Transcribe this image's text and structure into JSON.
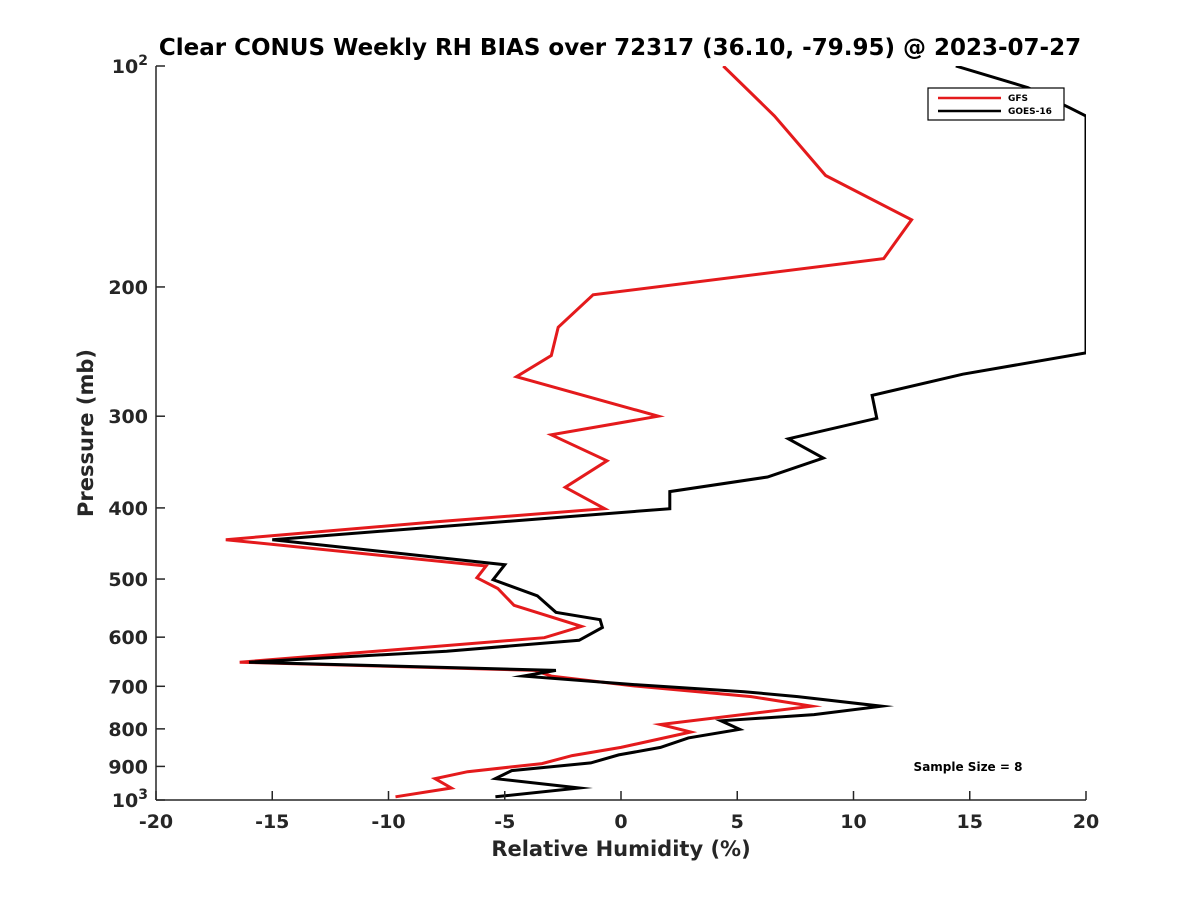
{
  "chart_data": {
    "type": "line",
    "title": "Clear CONUS Weekly RH BIAS over 72317 (36.10, -79.95) @ 2023-07-27",
    "xlabel": "Relative Humidity (%)",
    "ylabel": "Pressure (mb)",
    "xlim": [
      -20,
      20
    ],
    "ylim": [
      100,
      1000
    ],
    "yscale": "log",
    "y_reversed": true,
    "grid": false,
    "legend_position": "top-right",
    "xticks": [
      "-20",
      "-15",
      "-10",
      "-5",
      "0",
      "5",
      "10",
      "15",
      "20"
    ],
    "xtick_values": [
      -20,
      -15,
      -10,
      -5,
      0,
      5,
      10,
      15,
      20
    ],
    "yticks": [
      {
        "value": 100,
        "base": "10",
        "exp": "2",
        "label": ""
      },
      {
        "value": 200,
        "label": "200"
      },
      {
        "value": 300,
        "label": "300"
      },
      {
        "value": 400,
        "label": "400"
      },
      {
        "value": 500,
        "label": "500"
      },
      {
        "value": 600,
        "label": "600"
      },
      {
        "value": 700,
        "label": "700"
      },
      {
        "value": 800,
        "label": "800"
      },
      {
        "value": 900,
        "label": "900"
      },
      {
        "value": 1000,
        "base": "10",
        "exp": "3",
        "label": ""
      }
    ],
    "series": [
      {
        "name": "GFS",
        "color": "#e41a1c",
        "points": [
          {
            "x": 4.4,
            "y": 100
          },
          {
            "x": 6.6,
            "y": 117
          },
          {
            "x": 8.8,
            "y": 141
          },
          {
            "x": 12.5,
            "y": 162
          },
          {
            "x": 11.3,
            "y": 183
          },
          {
            "x": -1.2,
            "y": 205
          },
          {
            "x": -2.7,
            "y": 227
          },
          {
            "x": -3.0,
            "y": 248
          },
          {
            "x": -4.5,
            "y": 265
          },
          {
            "x": 1.6,
            "y": 300
          },
          {
            "x": -3.0,
            "y": 318
          },
          {
            "x": -0.6,
            "y": 345
          },
          {
            "x": -2.4,
            "y": 375
          },
          {
            "x": -0.7,
            "y": 401
          },
          {
            "x": -8.0,
            "y": 418
          },
          {
            "x": -17.0,
            "y": 442
          },
          {
            "x": -5.8,
            "y": 480
          },
          {
            "x": -6.2,
            "y": 498
          },
          {
            "x": -5.3,
            "y": 515
          },
          {
            "x": -4.6,
            "y": 543
          },
          {
            "x": -1.7,
            "y": 580
          },
          {
            "x": -3.3,
            "y": 601
          },
          {
            "x": -16.4,
            "y": 649
          },
          {
            "x": -3.7,
            "y": 666
          },
          {
            "x": -3.0,
            "y": 678
          },
          {
            "x": 0.5,
            "y": 699
          },
          {
            "x": 5.6,
            "y": 723
          },
          {
            "x": 8.2,
            "y": 745
          },
          {
            "x": 1.7,
            "y": 789
          },
          {
            "x": 3.0,
            "y": 808
          },
          {
            "x": 0.0,
            "y": 848
          },
          {
            "x": -2.1,
            "y": 870
          },
          {
            "x": -3.4,
            "y": 892
          },
          {
            "x": -6.6,
            "y": 915
          },
          {
            "x": -8.0,
            "y": 935
          },
          {
            "x": -7.3,
            "y": 963
          },
          {
            "x": -9.7,
            "y": 990
          }
        ]
      },
      {
        "name": "GOES-16",
        "color": "#000000",
        "points": [
          {
            "x": 14.4,
            "y": 100
          },
          {
            "x": 17.5,
            "y": 107
          },
          {
            "x": 19.3,
            "y": 114
          },
          {
            "x": 20.0,
            "y": 117
          },
          {
            "x": 20.0,
            "y": 246
          },
          {
            "x": 14.7,
            "y": 263
          },
          {
            "x": 10.8,
            "y": 281
          },
          {
            "x": 11.0,
            "y": 302
          },
          {
            "x": 7.2,
            "y": 322
          },
          {
            "x": 8.7,
            "y": 342
          },
          {
            "x": 6.3,
            "y": 363
          },
          {
            "x": 2.1,
            "y": 380
          },
          {
            "x": 2.1,
            "y": 401
          },
          {
            "x": -4.8,
            "y": 417
          },
          {
            "x": -15.0,
            "y": 442
          },
          {
            "x": -5.0,
            "y": 478
          },
          {
            "x": -5.5,
            "y": 501
          },
          {
            "x": -3.6,
            "y": 527
          },
          {
            "x": -2.8,
            "y": 555
          },
          {
            "x": -0.9,
            "y": 568
          },
          {
            "x": -0.8,
            "y": 582
          },
          {
            "x": -1.8,
            "y": 606
          },
          {
            "x": -7.5,
            "y": 627
          },
          {
            "x": -16.0,
            "y": 649
          },
          {
            "x": -2.8,
            "y": 666
          },
          {
            "x": -4.2,
            "y": 678
          },
          {
            "x": 0.5,
            "y": 696
          },
          {
            "x": 5.3,
            "y": 712
          },
          {
            "x": 7.6,
            "y": 723
          },
          {
            "x": 11.2,
            "y": 745
          },
          {
            "x": 8.3,
            "y": 765
          },
          {
            "x": 4.3,
            "y": 780
          },
          {
            "x": 5.1,
            "y": 801
          },
          {
            "x": 2.9,
            "y": 823
          },
          {
            "x": 1.7,
            "y": 848
          },
          {
            "x": -0.1,
            "y": 868
          },
          {
            "x": -1.3,
            "y": 890
          },
          {
            "x": -4.7,
            "y": 912
          },
          {
            "x": -5.4,
            "y": 935
          },
          {
            "x": -1.8,
            "y": 963
          },
          {
            "x": -5.4,
            "y": 990
          }
        ]
      }
    ],
    "annotation": "Sample Size = 8"
  }
}
